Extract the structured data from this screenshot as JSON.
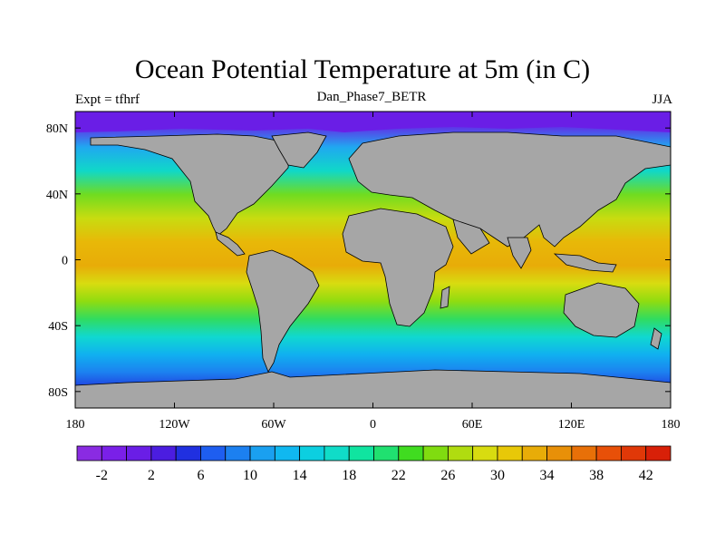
{
  "title": "Ocean Potential Temperature at 5m (in C)",
  "subtitle_left": "Expt = tfhrf",
  "subtitle_center": "Dan_Phase7_BETR",
  "subtitle_right": "JJA",
  "map": {
    "projection": "cylindrical-equidistant",
    "lon_range": [
      -180,
      180
    ],
    "lat_range": [
      -90,
      90
    ],
    "x_tick_labels": [
      "180",
      "120W",
      "60W",
      "0",
      "60E",
      "120E",
      "180"
    ],
    "y_tick_labels": [
      "80N",
      "40N",
      "0",
      "40S",
      "80S"
    ],
    "land_color": "#a6a6a6",
    "coastline_color": "#000000"
  },
  "colorbar": {
    "labels": [
      "-2",
      "2",
      "6",
      "10",
      "14",
      "18",
      "22",
      "26",
      "30",
      "34",
      "38",
      "42"
    ],
    "colors": [
      "#8a2be2",
      "#7a20e8",
      "#6a1ee6",
      "#4b1de0",
      "#2030e0",
      "#1e5ef0",
      "#1c80f0",
      "#1aa0f0",
      "#10b8f0",
      "#0ccfe0",
      "#10dcc8",
      "#10e4a0",
      "#20e070",
      "#40dc20",
      "#80dc10",
      "#b0dc10",
      "#d8dc10",
      "#e8c808",
      "#e8ac08",
      "#e89008",
      "#e87008",
      "#e85008",
      "#e03808",
      "#d82008"
    ]
  }
}
